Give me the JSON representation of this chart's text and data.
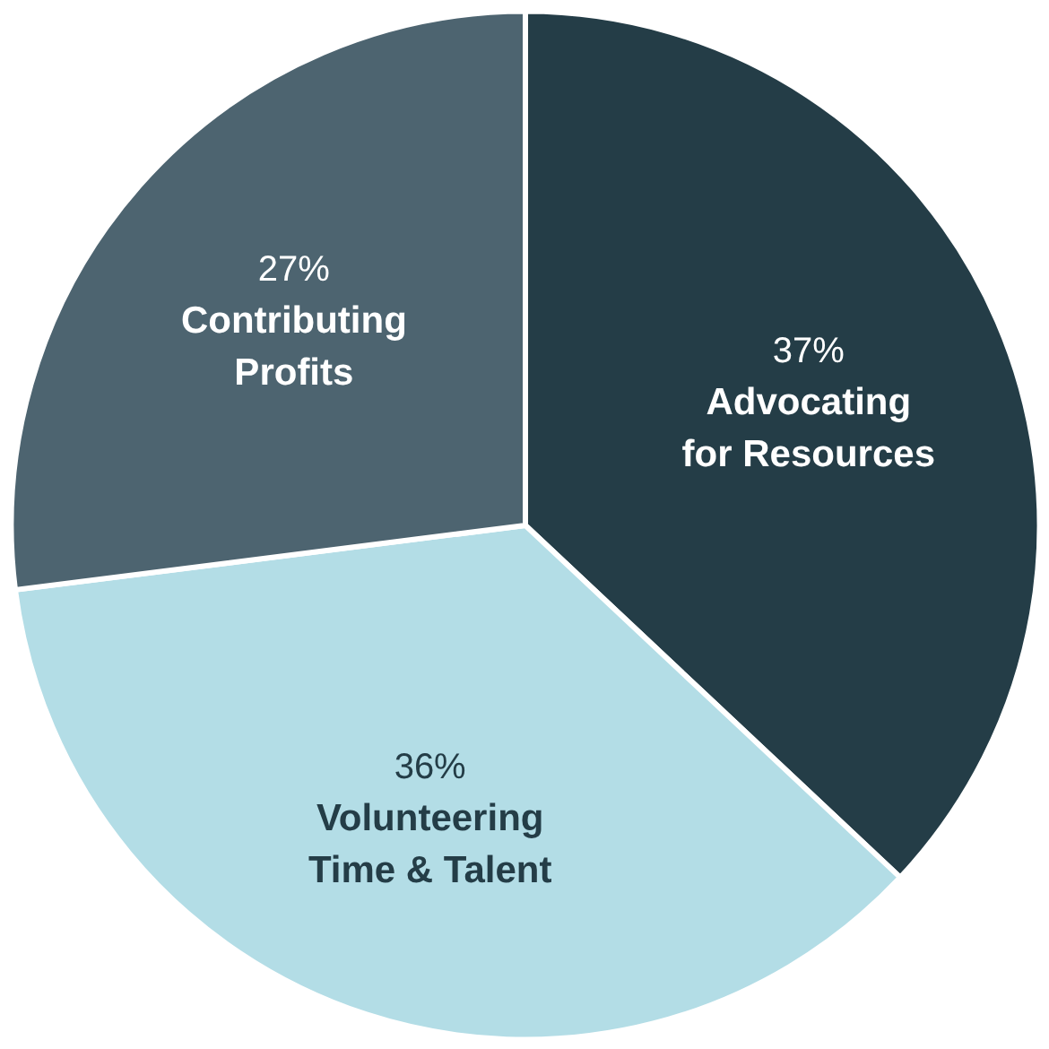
{
  "chart_data": {
    "type": "pie",
    "categories": [
      "Advocating for Resources",
      "Volunteering Time & Talent",
      "Contributing Profits"
    ],
    "values": [
      37,
      36,
      27
    ],
    "colors": [
      "#243d47",
      "#b3dde6",
      "#4d6470"
    ],
    "value_labels": [
      "37%",
      "36%",
      "27%"
    ]
  }
}
